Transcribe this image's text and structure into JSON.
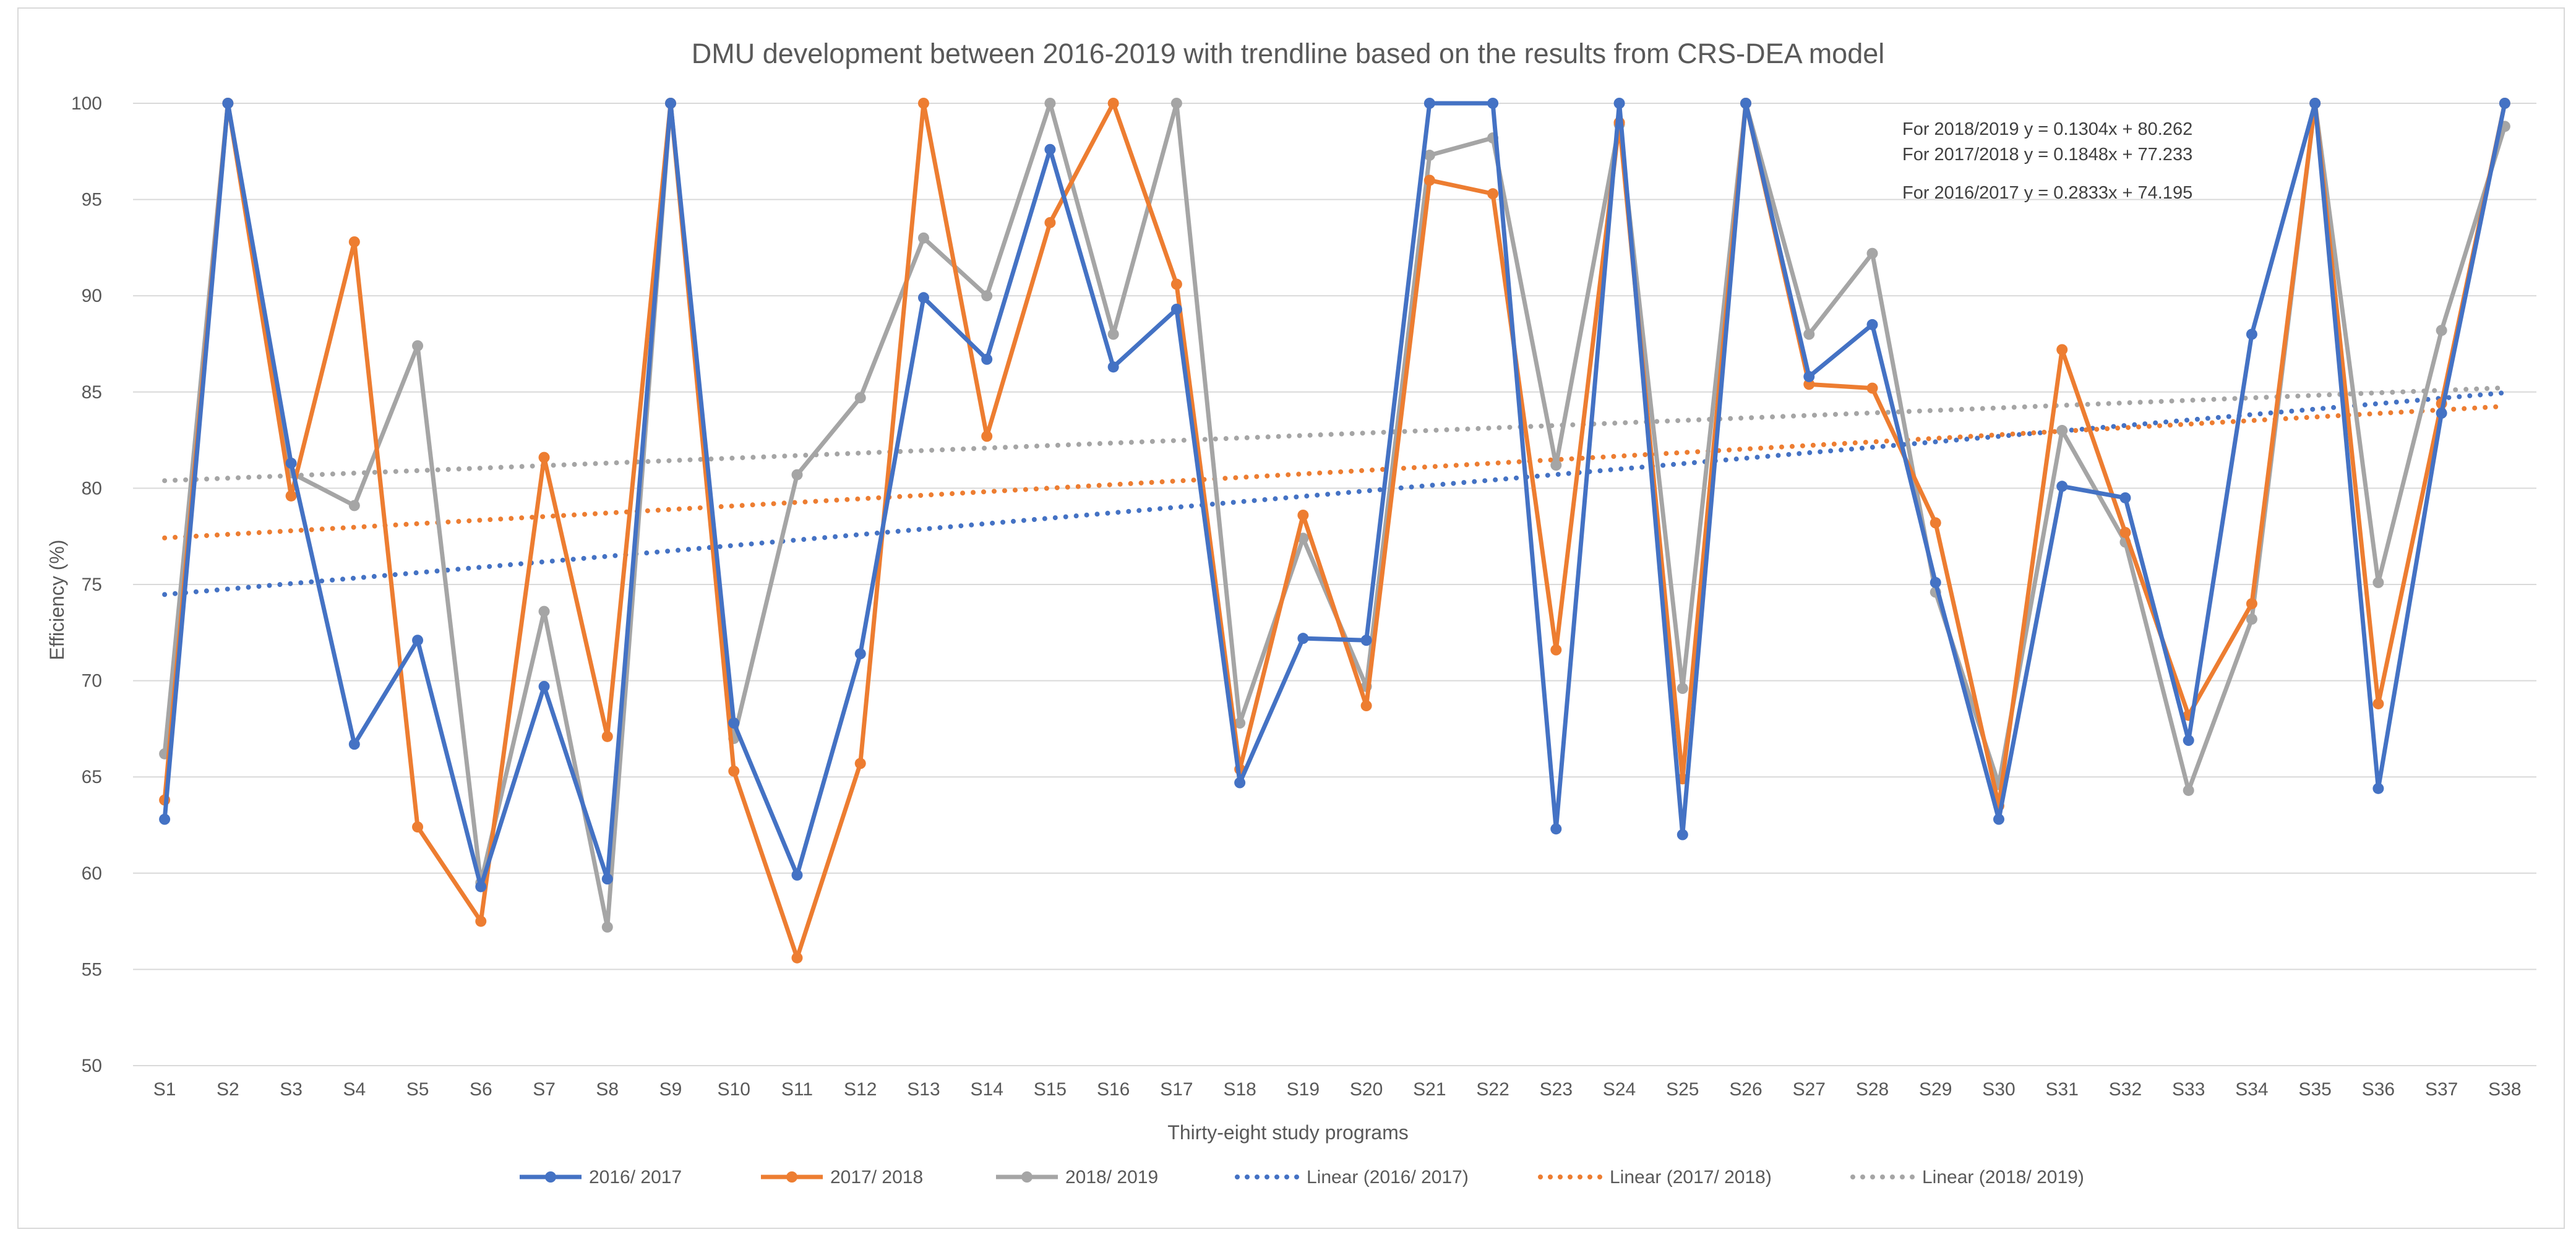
{
  "chart_data": {
    "type": "line",
    "title": "DMU development between 2016-2019 with trendline based on the results from CRS-DEA model",
    "xlabel": "Thirty-eight study programs",
    "ylabel": "Efficiency (%)",
    "ylim": [
      50,
      100
    ],
    "yticks": [
      50,
      55,
      60,
      65,
      70,
      75,
      80,
      85,
      90,
      95,
      100
    ],
    "categories": [
      "S1",
      "S2",
      "S3",
      "S4",
      "S5",
      "S6",
      "S7",
      "S8",
      "S9",
      "S10",
      "S11",
      "S12",
      "S13",
      "S14",
      "S15",
      "S16",
      "S17",
      "S18",
      "S19",
      "S20",
      "S21",
      "S22",
      "S23",
      "S24",
      "S25",
      "S26",
      "S27",
      "S28",
      "S29",
      "S30",
      "S31",
      "S32",
      "S33",
      "S34",
      "S35",
      "S36",
      "S37",
      "S38"
    ],
    "series": [
      {
        "name": "2016/ 2017",
        "color": "#4472C4",
        "values": [
          62.8,
          100,
          81.3,
          66.7,
          72.1,
          59.3,
          69.7,
          59.7,
          100,
          67.8,
          59.9,
          71.4,
          89.9,
          86.7,
          97.6,
          86.3,
          89.3,
          64.7,
          72.2,
          72.1,
          100,
          100,
          62.3,
          100,
          62.0,
          100,
          85.8,
          88.5,
          75.1,
          62.8,
          80.1,
          79.5,
          66.9,
          88.0,
          100,
          64.4,
          83.9,
          100
        ]
      },
      {
        "name": "2017/ 2018",
        "color": "#ED7D31",
        "values": [
          63.8,
          100,
          79.6,
          92.8,
          62.4,
          57.5,
          81.6,
          67.1,
          100,
          65.3,
          55.6,
          65.7,
          100,
          82.7,
          93.8,
          100,
          90.6,
          65.4,
          78.6,
          68.7,
          96.0,
          95.3,
          71.6,
          99.0,
          64.9,
          100,
          85.4,
          85.2,
          78.2,
          63.5,
          87.2,
          77.7,
          68.2,
          74.0,
          100,
          68.8,
          84.4,
          100
        ]
      },
      {
        "name": "2018/ 2019",
        "color": "#A5A5A5",
        "values": [
          66.2,
          100,
          80.8,
          79.1,
          87.4,
          59.5,
          73.6,
          57.2,
          100,
          67.0,
          80.7,
          84.7,
          93.0,
          90.0,
          100,
          88.0,
          100,
          67.8,
          77.4,
          69.7,
          97.3,
          98.2,
          81.2,
          98.9,
          69.6,
          100,
          88.0,
          92.2,
          74.6,
          64.6,
          83.0,
          77.2,
          64.3,
          73.2,
          100,
          75.1,
          88.2,
          98.8
        ]
      }
    ],
    "trendlines": [
      {
        "name": "Linear (2016/ 2017)",
        "color": "#4472C4",
        "slope": 0.2833,
        "intercept": 74.195
      },
      {
        "name": "Linear (2017/ 2018)",
        "color": "#ED7D31",
        "slope": 0.1848,
        "intercept": 77.233
      },
      {
        "name": "Linear (2018/ 2019)",
        "color": "#A5A5A5",
        "slope": 0.1304,
        "intercept": 80.262
      }
    ],
    "equations": [
      "For 2018/2019 y = 0.1304x + 80.262",
      "For 2017/2018 y = 0.1848x + 77.233",
      "For 2016/2017 y = 0.2833x + 74.195"
    ],
    "legend_position": "bottom"
  }
}
